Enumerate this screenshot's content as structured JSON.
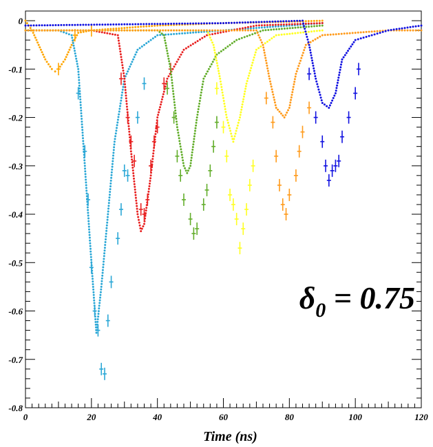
{
  "chart_data": {
    "type": "scatter",
    "xlabel": "Time (ns)",
    "ylabel": "",
    "xlim": [
      0,
      120
    ],
    "ylim": [
      -0.8,
      0.02
    ],
    "x_ticks": [
      0,
      20,
      40,
      60,
      80,
      100,
      120
    ],
    "x_tick_labels": [
      "0",
      "20",
      "40",
      "60",
      "80",
      "100",
      "120"
    ],
    "y_ticks": [
      0,
      -0.1,
      -0.2,
      -0.3,
      -0.4,
      -0.5,
      -0.6,
      -0.7,
      -0.8
    ],
    "y_tick_labels": [
      "0",
      "-0.1",
      "-0.2",
      "-0.3",
      "-0.4",
      "-0.5",
      "-0.6",
      "-0.7",
      "-0.8"
    ],
    "grid": false,
    "legend": "none",
    "annotation": {
      "symbol": "δ",
      "subscript": "0",
      "text": " = 0.75",
      "x": 83,
      "y": -0.595
    },
    "series": [
      {
        "color": "#ffa500",
        "marker": "dots",
        "dip_x": 9,
        "dip_y": -0.105,
        "points": [
          [
            0,
            0
          ],
          [
            2,
            -0.02
          ],
          [
            4,
            -0.05
          ],
          [
            6,
            -0.08
          ],
          [
            8,
            -0.1
          ],
          [
            9,
            -0.105
          ],
          [
            10,
            -0.1
          ],
          [
            12,
            -0.08
          ],
          [
            14,
            -0.05
          ],
          [
            16,
            -0.025
          ],
          [
            20,
            -0.02
          ],
          [
            40,
            -0.01
          ],
          [
            60,
            -0.005
          ],
          [
            80,
            -0.002
          ],
          [
            90,
            0
          ]
        ],
        "errorbars": [
          [
            10,
            -0.1
          ],
          [
            15,
            -0.03
          ],
          [
            20,
            -0.02
          ]
        ]
      },
      {
        "color": "#2aa7d6",
        "marker": "dots",
        "dip_x": 21.5,
        "dip_y": -0.645,
        "points": [
          [
            0,
            -0.02
          ],
          [
            10,
            -0.02
          ],
          [
            14,
            -0.03
          ],
          [
            16,
            -0.1
          ],
          [
            18,
            -0.3
          ],
          [
            20,
            -0.5
          ],
          [
            21.5,
            -0.645
          ],
          [
            23,
            -0.55
          ],
          [
            25,
            -0.4
          ],
          [
            27,
            -0.25
          ],
          [
            30,
            -0.12
          ],
          [
            34,
            -0.06
          ],
          [
            40,
            -0.03
          ],
          [
            60,
            -0.02
          ],
          [
            90,
            -0.005
          ]
        ],
        "errorbars": [
          [
            16,
            -0.15
          ],
          [
            18,
            -0.27
          ],
          [
            19,
            -0.37
          ],
          [
            20,
            -0.51
          ],
          [
            21,
            -0.6
          ],
          [
            22,
            -0.64
          ],
          [
            23,
            -0.72
          ],
          [
            24,
            -0.73
          ],
          [
            25,
            -0.62
          ],
          [
            26,
            -0.54
          ],
          [
            28,
            -0.45
          ],
          [
            29,
            -0.39
          ],
          [
            30,
            -0.31
          ],
          [
            31,
            -0.32
          ],
          [
            34,
            -0.2
          ],
          [
            36,
            -0.13
          ]
        ]
      },
      {
        "color": "#e82020",
        "marker": "dots",
        "dip_x": 35,
        "dip_y": -0.435,
        "points": [
          [
            0,
            -0.02
          ],
          [
            20,
            -0.02
          ],
          [
            28,
            -0.03
          ],
          [
            30,
            -0.12
          ],
          [
            32,
            -0.27
          ],
          [
            34,
            -0.4
          ],
          [
            35,
            -0.435
          ],
          [
            36,
            -0.42
          ],
          [
            38,
            -0.32
          ],
          [
            40,
            -0.2
          ],
          [
            43,
            -0.12
          ],
          [
            48,
            -0.06
          ],
          [
            55,
            -0.03
          ],
          [
            70,
            -0.01
          ],
          [
            90,
            -0.005
          ]
        ],
        "errorbars": [
          [
            29,
            -0.12
          ],
          [
            31,
            -0.2
          ],
          [
            32,
            -0.25
          ],
          [
            33,
            -0.29
          ],
          [
            35,
            -0.39
          ],
          [
            36,
            -0.4
          ],
          [
            37,
            -0.37
          ],
          [
            38,
            -0.3
          ],
          [
            39,
            -0.25
          ],
          [
            40,
            -0.22
          ],
          [
            42,
            -0.13
          ],
          [
            44,
            -0.1
          ]
        ]
      },
      {
        "color": "#62ad2a",
        "marker": "dots",
        "dip_x": 49,
        "dip_y": -0.315,
        "points": [
          [
            0,
            -0.02
          ],
          [
            40,
            -0.02
          ],
          [
            42,
            -0.03
          ],
          [
            44,
            -0.1
          ],
          [
            46,
            -0.22
          ],
          [
            48,
            -0.3
          ],
          [
            49,
            -0.315
          ],
          [
            50,
            -0.3
          ],
          [
            52,
            -0.2
          ],
          [
            54,
            -0.12
          ],
          [
            58,
            -0.07
          ],
          [
            64,
            -0.04
          ],
          [
            72,
            -0.02
          ],
          [
            90,
            -0.01
          ]
        ],
        "errorbars": [
          [
            43,
            -0.14
          ],
          [
            45,
            -0.2
          ],
          [
            46,
            -0.28
          ],
          [
            47,
            -0.32
          ],
          [
            48,
            -0.37
          ],
          [
            50,
            -0.41
          ],
          [
            51,
            -0.44
          ],
          [
            52,
            -0.43
          ],
          [
            54,
            -0.38
          ],
          [
            55,
            -0.35
          ],
          [
            56,
            -0.31
          ],
          [
            57,
            -0.26
          ],
          [
            58,
            -0.21
          ]
        ]
      },
      {
        "color": "#ffff22",
        "marker": "dots",
        "dip_x": 63,
        "dip_y": -0.25,
        "points": [
          [
            0,
            -0.02
          ],
          [
            55,
            -0.02
          ],
          [
            57,
            -0.05
          ],
          [
            59,
            -0.12
          ],
          [
            61,
            -0.2
          ],
          [
            63,
            -0.25
          ],
          [
            65,
            -0.2
          ],
          [
            67,
            -0.13
          ],
          [
            70,
            -0.06
          ],
          [
            76,
            -0.03
          ],
          [
            90,
            -0.02
          ]
        ],
        "errorbars": [
          [
            58,
            -0.14
          ],
          [
            60,
            -0.22
          ],
          [
            61,
            -0.28
          ],
          [
            62,
            -0.36
          ],
          [
            63,
            -0.38
          ],
          [
            64,
            -0.41
          ],
          [
            65,
            -0.47
          ],
          [
            66,
            -0.43
          ],
          [
            67,
            -0.39
          ],
          [
            68,
            -0.34
          ],
          [
            69,
            -0.3
          ]
        ]
      },
      {
        "color": "#ff9a1a",
        "marker": "dots",
        "dip_x": 78.5,
        "dip_y": -0.2,
        "points": [
          [
            0,
            -0.02
          ],
          [
            70,
            -0.02
          ],
          [
            72,
            -0.05
          ],
          [
            74,
            -0.12
          ],
          [
            76,
            -0.18
          ],
          [
            78.5,
            -0.2
          ],
          [
            80,
            -0.18
          ],
          [
            82,
            -0.11
          ],
          [
            85,
            -0.05
          ],
          [
            90,
            -0.03
          ],
          [
            110,
            -0.02
          ],
          [
            120,
            -0.02
          ]
        ],
        "errorbars": [
          [
            73,
            -0.16
          ],
          [
            75,
            -0.21
          ],
          [
            76,
            -0.28
          ],
          [
            77,
            -0.34
          ],
          [
            78,
            -0.38
          ],
          [
            79,
            -0.4
          ],
          [
            80,
            -0.36
          ],
          [
            82,
            -0.32
          ],
          [
            83,
            -0.27
          ],
          [
            84,
            -0.23
          ],
          [
            86,
            -0.18
          ]
        ]
      },
      {
        "color": "#1010e0",
        "marker": "dots",
        "dip_x": 92,
        "dip_y": -0.18,
        "points": [
          [
            0,
            -0.01
          ],
          [
            60,
            -0.005
          ],
          [
            84,
            0
          ],
          [
            86,
            -0.05
          ],
          [
            88,
            -0.12
          ],
          [
            90,
            -0.17
          ],
          [
            92,
            -0.18
          ],
          [
            94,
            -0.15
          ],
          [
            96,
            -0.08
          ],
          [
            100,
            -0.04
          ],
          [
            110,
            -0.02
          ],
          [
            120,
            -0.01
          ]
        ],
        "errorbars": [
          [
            86,
            -0.11
          ],
          [
            88,
            -0.2
          ],
          [
            90,
            -0.25
          ],
          [
            91,
            -0.3
          ],
          [
            92,
            -0.33
          ],
          [
            93,
            -0.31
          ],
          [
            94,
            -0.3
          ],
          [
            95,
            -0.29
          ],
          [
            96,
            -0.24
          ],
          [
            98,
            -0.2
          ],
          [
            100,
            -0.15
          ],
          [
            101,
            -0.1
          ]
        ]
      }
    ]
  }
}
